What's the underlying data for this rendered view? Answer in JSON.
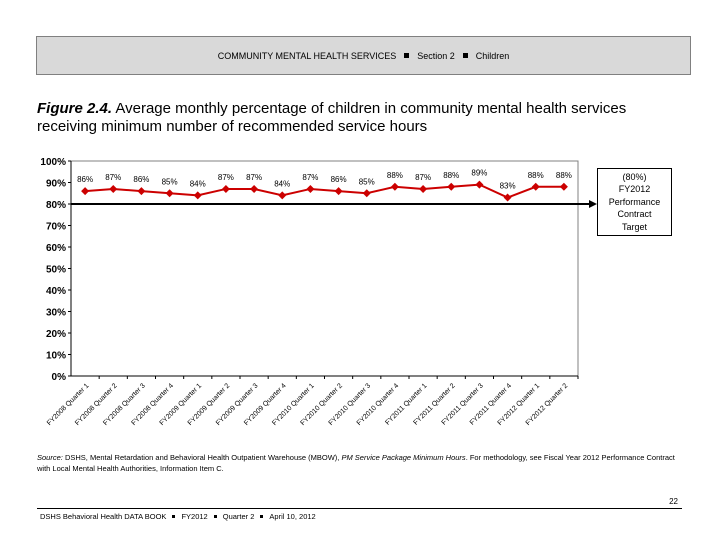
{
  "header": {
    "section": "COMMUNITY MENTAL HEALTH SERVICES",
    "part": "Section 2",
    "topic": "Children"
  },
  "figure": {
    "label": "Figure 2.4.",
    "title": "Average monthly percentage of children in community mental health services receiving minimum number of recommended service hours"
  },
  "chart_data": {
    "type": "line",
    "categories": [
      "FY2008 Quarter 1",
      "FY2008 Quarter 2",
      "FY2008 Quarter 3",
      "FY2008 Quarter 4",
      "FY2009 Quarter 1",
      "FY2009 Quarter 2",
      "FY2009 Quarter 3",
      "FY2009 Quarter 4",
      "FY2010 Quarter 1",
      "FY2010 Quarter 2",
      "FY2010 Quarter 3",
      "FY2010 Quarter 4",
      "FY2011 Quarter 1",
      "FY2011 Quarter 2",
      "FY2011 Quarter 3",
      "FY2011 Quarter 4",
      "FY2012 Quarter 1",
      "FY2012 Quarter 2"
    ],
    "values": [
      86,
      87,
      86,
      85,
      84,
      87,
      87,
      84,
      87,
      86,
      85,
      88,
      87,
      88,
      89,
      83,
      88,
      88
    ],
    "data_labels": [
      "86%",
      "87%",
      "86%",
      "85%",
      "84%",
      "87%",
      "87%",
      "84%",
      "87%",
      "86%",
      "85%",
      "88%",
      "87%",
      "88%",
      "89%",
      "83%",
      "88%",
      "88%"
    ],
    "yticks": [
      "0%",
      "10%",
      "20%",
      "30%",
      "40%",
      "50%",
      "60%",
      "70%",
      "80%",
      "90%",
      "100%"
    ],
    "ylim": [
      0,
      100
    ],
    "series_color": "#cc0000",
    "target": {
      "value": 80,
      "label_lines": [
        "(80%)",
        "FY2012",
        "Performance",
        "Contract",
        "Target"
      ]
    },
    "grid": false
  },
  "source": {
    "prefix": "Source:",
    "text1": " DSHS, Mental Retardation and Behavioral Health Outpatient Warehouse (MBOW), ",
    "italic": "PM Service Package Minimum Hours",
    "text2": ". For methodology, see Fiscal Year 2012 Performance Contract with Local Mental Health Authorities, Information Item C."
  },
  "page_number": "22",
  "footer": {
    "book": "DSHS Behavioral Health DATA BOOK",
    "year": "FY2012",
    "quarter": "Quarter 2",
    "date": "April 10, 2012"
  }
}
